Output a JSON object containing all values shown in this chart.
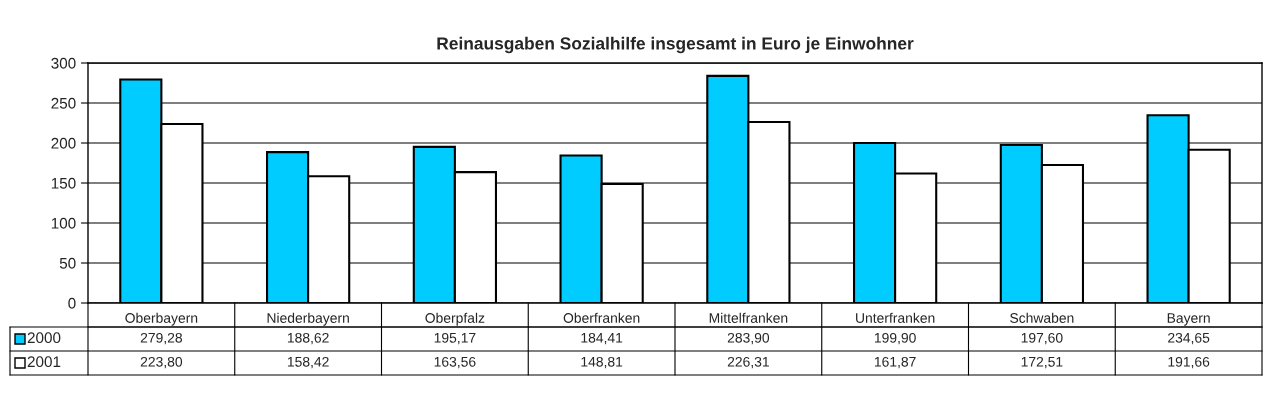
{
  "chart_data": {
    "type": "bar",
    "title": "Reinausgaben Sozialhilfe insgesamt in Euro je Einwohner",
    "categories": [
      "Oberbayern",
      "Niederbayern",
      "Oberpfalz",
      "Oberfranken",
      "Mittelfranken",
      "Unterfranken",
      "Schwaben",
      "Bayern"
    ],
    "series": [
      {
        "name": "2000",
        "color": "#00ccff",
        "values": [
          279.28,
          188.62,
          195.17,
          184.41,
          283.9,
          199.9,
          197.6,
          234.65
        ],
        "value_labels": [
          "279,28",
          "188,62",
          "195,17",
          "184,41",
          "283,90",
          "199,90",
          "197,60",
          "234,65"
        ]
      },
      {
        "name": "2001",
        "color": "#ffffff",
        "values": [
          223.8,
          158.42,
          163.56,
          148.81,
          226.31,
          161.87,
          172.51,
          191.66
        ],
        "value_labels": [
          "223,80",
          "158,42",
          "163,56",
          "148,81",
          "226,31",
          "161,87",
          "172,51",
          "191,66"
        ]
      }
    ],
    "ylim": [
      0,
      300
    ],
    "yticks": [
      0,
      50,
      100,
      150,
      200,
      250,
      300
    ],
    "grid": "y",
    "legend": "bottom left"
  }
}
